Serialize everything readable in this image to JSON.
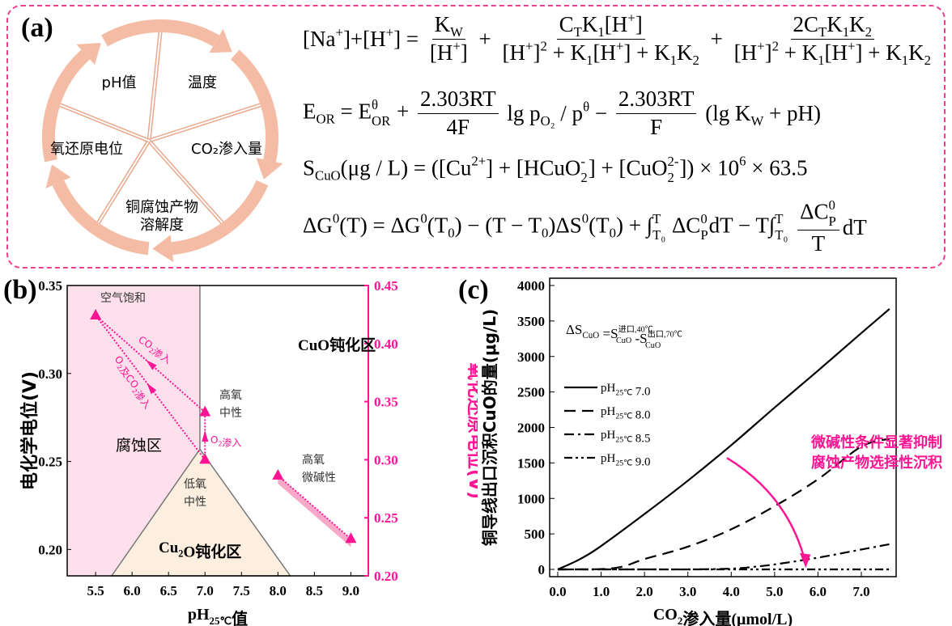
{
  "panel_a": {
    "label": "(a)",
    "cycle": [
      "pH值",
      "温度",
      "CO₂渗入量",
      "铜腐蚀产物\n溶解度",
      "氧还原电位"
    ],
    "equations": [
      [
        "[Na^{+}]+[H^{+}] = ",
        {
          "num": "K_{W}",
          "den": "[H^{+}]"
        },
        " + ",
        {
          "num": "C_{T}K_{1}[H^{+}]",
          "den": "[H^{+}]^{2} + K_{1}[H^{+}] + K_{1}K_{2}"
        },
        " + ",
        {
          "num": "2C_{T}K_{1}K_{2}",
          "den": "[H^{+}]^{2} + K_{1}[H^{+}] + K_{1}K_{2}"
        }
      ],
      [
        "E_{OR} = E^{θ}_{OR} + ",
        {
          "num": "2.303RT",
          "den": "4F"
        },
        " lg p_{O₂} / p^{θ} − ",
        {
          "num": "2.303RT",
          "den": "F"
        },
        " (lg K_{W} + pH)"
      ],
      [
        "S_{CuO}(μg / L) = ([Cu^{2+}] + [HCuO^{-}_{2}] + [CuO^{2-}_{2}]) × 10^{6} × 63.5"
      ],
      [
        "ΔG^{0}(T) = ΔG^{0}(T_{0}) − (T − T_{0})ΔS^{0}(T_{0}) + ∫^{T}_{T₀} ΔC^{0}_{P}dT − T∫^{T}_{T₀} ",
        {
          "num": "ΔC^{0}_{P}",
          "den": "T"
        },
        "dT"
      ]
    ]
  },
  "colors": {
    "accent": "#ff1493",
    "corrosion": "#fde0ec",
    "cu2o": "#fdefe0",
    "ring": "#f4bca5",
    "frame": "#ef3f8f"
  },
  "chart_data": [
    {
      "panel": "(b)",
      "type": "scatter",
      "xlabel": "pH_{25℃}值",
      "ylabel": "电化学电位(V)",
      "y2label": "氧化还原电位(V)",
      "xlim": [
        5.11,
        9.24
      ],
      "ylim": [
        0.185,
        0.35
      ],
      "y2lim": [
        0.2,
        0.45
      ],
      "xticks": [
        "5.5",
        "6.0",
        "6.5",
        "7.0",
        "7.5",
        "8.0",
        "8.5",
        "9.0"
      ],
      "yticks": [
        "0.20",
        "0.25",
        "0.30",
        "0.35"
      ],
      "y2ticks": [
        "0.20",
        "0.25",
        "0.30",
        "0.35",
        "0.40",
        "0.45"
      ],
      "regions": [
        {
          "name": "腐蚀区",
          "label": "腐蚀区"
        },
        {
          "name": "CuO钝化区",
          "label": "CuO钝化区"
        },
        {
          "name": "Cu2O钝化区",
          "label": "Cu_{2}O钝化区",
          "apex": [
            6.93,
            0.257
          ],
          "base": [
            5.72,
            8.17
          ]
        }
      ],
      "points": [
        {
          "x": 5.5,
          "y": 0.333,
          "label": "空气饱和"
        },
        {
          "x": 7.0,
          "y": 0.278,
          "label": "高氧\n中性"
        },
        {
          "x": 7.0,
          "y": 0.251,
          "label": "低氧\n中性"
        },
        {
          "x": 8.0,
          "y": 0.242,
          "label": "高氧\n微碱性"
        },
        {
          "x": 9.0,
          "y": 0.206,
          "label": ""
        }
      ],
      "arrows": [
        {
          "from": [
            7.0,
            0.278
          ],
          "to": [
            5.5,
            0.333
          ],
          "label": "CO_{2}渗入"
        },
        {
          "from": [
            7.0,
            0.251
          ],
          "to": [
            5.5,
            0.333
          ],
          "label": "O_{2}及CO_{2}渗入"
        },
        {
          "from": [
            7.0,
            0.251
          ],
          "to": [
            7.0,
            0.278
          ],
          "label": "O_{2}渗入"
        },
        {
          "from": [
            8.0,
            0.242
          ],
          "to": [
            9.0,
            0.206
          ],
          "label": ""
        }
      ]
    },
    {
      "panel": "(c)",
      "type": "line",
      "xlabel": "CO_{2}渗入量(μmol/L)",
      "ylabel": "铜导线出口沉积CuO的量(μg/L)",
      "xlim": [
        -0.2,
        7.8
      ],
      "ylim": [
        -100,
        4100
      ],
      "xticks": [
        "0.0",
        "1.0",
        "2.0",
        "3.0",
        "4.0",
        "5.0",
        "6.0",
        "7.0"
      ],
      "yticks": [
        "0",
        "500",
        "1000",
        "1500",
        "2000",
        "2500",
        "3000",
        "3500",
        "4000"
      ],
      "formula": "ΔS_{CuO} =S^{进口,40℃}_{CuO} -S^{出口,70℃}_{CuO}",
      "annotation": "微碱性条件显著抑制\n腐蚀产物选择性沉积",
      "legend_position": "left",
      "series": [
        {
          "name": "pH_{25℃} 7.0",
          "dash": "solid",
          "x": [
            0,
            0.5,
            1,
            2,
            3,
            4,
            5,
            6,
            7,
            7.65
          ],
          "y": [
            0,
            140,
            330,
            780,
            1250,
            1750,
            2280,
            2800,
            3330,
            3670
          ]
        },
        {
          "name": "pH_{25℃} 8.0",
          "dash": "dash",
          "x": [
            0,
            1,
            1.5,
            2,
            3,
            4,
            5,
            6,
            7,
            7.65
          ],
          "y": [
            0,
            5,
            40,
            145,
            320,
            565,
            890,
            1270,
            1730,
            1840
          ]
        },
        {
          "name": "pH_{25℃} 8.5",
          "dash": "dashdot",
          "x": [
            0,
            1,
            2,
            3,
            4,
            4.5,
            5,
            6,
            7,
            7.65
          ],
          "y": [
            0,
            0,
            0,
            0,
            10,
            35,
            70,
            165,
            280,
            355
          ]
        },
        {
          "name": "pH_{25℃} 9.0",
          "dash": "dashdotdot",
          "x": [
            0,
            2,
            4,
            6,
            7.65
          ],
          "y": [
            0,
            0,
            0,
            0,
            0
          ]
        }
      ]
    }
  ]
}
